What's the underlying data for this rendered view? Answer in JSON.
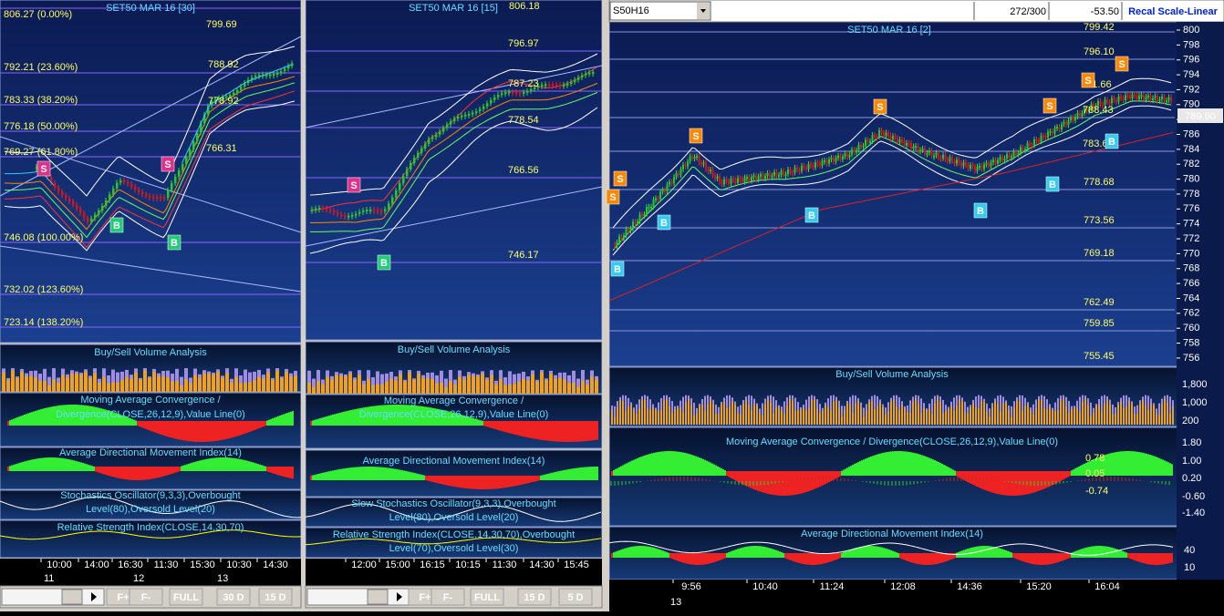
{
  "toolbar": {
    "symbol": "S50H16",
    "count": "272/300",
    "change": "-53.50",
    "button": "Recal Scale-Linear"
  },
  "panels": [
    {
      "title": "SET50 MAR 16  [30]",
      "top_label": "806.27 (0.00%)",
      "levels": [
        "792.21 (23.60%)",
        "783.33 (38.20%)",
        "776.18 (50.00%)",
        "769.27 (61.80%)",
        "746.08 (100.00%)",
        "732.02 (123.60%)",
        "723.14 (138.20%)"
      ],
      "price_labels": [
        "799.69",
        "788.92",
        "778.92",
        "766.31"
      ],
      "signals": [
        "S",
        "S",
        "B",
        "B"
      ],
      "indicators": [
        [
          "Buy/Sell Volume Analysis"
        ],
        [
          "Moving Average Convergence /",
          "Divergence(CLOSE,26,12,9),Value Line(0)"
        ],
        [
          "Average Directional Movement Index(14)"
        ],
        [
          "Stochastics Oscillator(9,3,3),Overbought",
          "Level(80),Oversold Level(20)"
        ],
        [
          "Relative Strength Index(CLOSE,14,30,70)"
        ]
      ],
      "times": [
        "10:00",
        "14:00",
        "16:30",
        "11:30",
        "15:30",
        "10:30",
        "14:30"
      ],
      "dates": [
        "11",
        "12",
        "13"
      ],
      "buttons": [
        "F+",
        "F-",
        "FULL",
        "30 D",
        "15 D"
      ]
    },
    {
      "title": "SET50 MAR 16  [15]",
      "top_label": "806.18",
      "levels": [],
      "price_labels": [
        "796.97",
        "787.23",
        "778.54",
        "766.56",
        "746.17"
      ],
      "signals": [
        "S",
        "B"
      ],
      "indicators": [
        [
          "Buy/Sell Volume Analysis"
        ],
        [
          "Moving Average Convergence /",
          "Divergence(CLOSE,26,12,9),Value Line(0)"
        ],
        [
          "Average Directional Movement Index(14)"
        ],
        [
          "Slow Stochastics Oscillator(9,3,3),Overbought",
          "Level(80),Oversold Level(20)"
        ],
        [
          "Relative Strength Index(CLOSE,14,30,70),Overbought",
          "Level(70),Oversold Level(30)"
        ]
      ],
      "times": [
        "12:00",
        "15:00",
        "16:15",
        "10:15",
        "11:30",
        "14:30",
        "15:45"
      ],
      "dates": [],
      "buttons": [
        "F+",
        "F-",
        "FULL",
        "15 D",
        "5 D"
      ]
    },
    {
      "title": "SET50 MAR 16  [2]",
      "top_label": "799.42",
      "levels": [],
      "price_labels": [
        "796.10",
        "791.66",
        "788.43",
        "783.67",
        "778.68",
        "773.56",
        "769.18",
        "762.49",
        "759.85",
        "755.45"
      ],
      "signals": [
        "S",
        "S",
        "S",
        "S",
        "S",
        "S",
        "S",
        "B",
        "B",
        "B",
        "B",
        "B",
        "B"
      ],
      "indicators": [
        [
          "Buy/Sell Volume Analysis"
        ],
        [
          "Moving Average Convergence / Divergence(CLOSE,26,12,9),Value Line(0)"
        ],
        [
          "Average Directional Movement Index(14)"
        ]
      ],
      "price_axis": [
        "800",
        "798",
        "796",
        "794",
        "792",
        "790",
        "788",
        "786",
        "784",
        "782",
        "780",
        "778",
        "776",
        "774",
        "772",
        "770",
        "768",
        "766",
        "764",
        "762",
        "760",
        "758",
        "756"
      ],
      "current_price": "789.60",
      "volume_axis": [
        "1,800",
        "1,000",
        "200"
      ],
      "macd_axis": [
        "1.80",
        "1.00",
        "0.20",
        "-0.60",
        "-1.40"
      ],
      "macd_labels": [
        "0.78",
        "0.05",
        "-0.74"
      ],
      "adx_axis": [
        "40",
        "10"
      ],
      "times": [
        "9:56",
        "10:40",
        "11:24",
        "12:08",
        "14:36",
        "15:20",
        "16:04"
      ],
      "dates": [
        "13"
      ],
      "buttons": []
    }
  ]
}
